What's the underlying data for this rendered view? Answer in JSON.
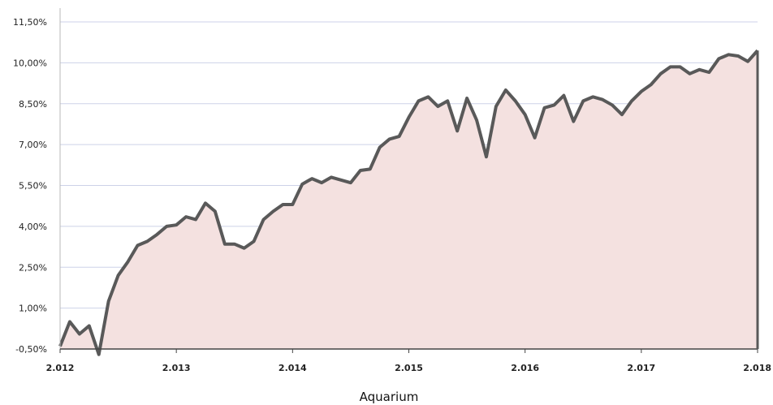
{
  "chart_data": {
    "type": "area",
    "title": "",
    "xlabel": "Aquarium",
    "ylabel": "",
    "ylim": [
      -0.5,
      12.0
    ],
    "xlim": [
      2012,
      2018
    ],
    "y_ticks": [
      "-0,50%",
      "1,00%",
      "2,50%",
      "4,00%",
      "5,50%",
      "7,00%",
      "8,50%",
      "10,00%",
      "11,50%"
    ],
    "y_tick_values": [
      -0.5,
      1.0,
      2.5,
      4.0,
      5.5,
      7.0,
      8.5,
      10.0,
      11.5
    ],
    "x_ticks": [
      "2.012",
      "2.013",
      "2.014",
      "2.015",
      "2.016",
      "2.017",
      "2.018"
    ],
    "x_tick_values": [
      2012,
      2013,
      2014,
      2015,
      2016,
      2017,
      2018
    ],
    "grid": "horizontal",
    "line_color": "#595959",
    "fill_color": "#f4e1e0",
    "grid_color": "#cdd2e8",
    "series": [
      {
        "x": [
          2012.0,
          2012.0833,
          2012.1667,
          2012.25,
          2012.3333,
          2012.4167,
          2012.5,
          2012.5833,
          2012.6667,
          2012.75,
          2012.8333,
          2012.9167,
          2013.0,
          2013.0833,
          2013.1667,
          2013.25,
          2013.3333,
          2013.4167,
          2013.5,
          2013.5833,
          2013.6667,
          2013.75,
          2013.8333,
          2013.9167,
          2014.0,
          2014.0833,
          2014.1667,
          2014.25,
          2014.3333,
          2014.4167,
          2014.5,
          2014.5833,
          2014.6667,
          2014.75,
          2014.8333,
          2014.9167,
          2015.0,
          2015.0833,
          2015.1667,
          2015.25,
          2015.3333,
          2015.4167,
          2015.5,
          2015.5833,
          2015.6667,
          2015.75,
          2015.8333,
          2015.9167,
          2016.0,
          2016.0833,
          2016.1667,
          2016.25,
          2016.3333,
          2016.4167,
          2016.5,
          2016.5833,
          2016.6667,
          2016.75,
          2016.8333,
          2016.9167,
          2017.0,
          2017.0833,
          2017.1667,
          2017.25,
          2017.3333,
          2017.4167,
          2017.5,
          2017.5833,
          2017.6667,
          2017.75,
          2017.8333,
          2017.9167,
          2018.0
        ],
        "values": [
          -0.4,
          0.5,
          0.05,
          0.35,
          -0.7,
          1.25,
          2.2,
          2.7,
          3.3,
          3.45,
          3.7,
          4.0,
          4.05,
          4.35,
          4.25,
          4.85,
          4.55,
          3.35,
          3.35,
          3.2,
          3.45,
          4.25,
          4.55,
          4.8,
          4.8,
          5.55,
          5.75,
          5.6,
          5.8,
          5.7,
          5.6,
          6.05,
          6.1,
          6.9,
          7.2,
          7.3,
          8.0,
          8.6,
          8.75,
          8.4,
          8.6,
          7.5,
          8.7,
          7.9,
          6.55,
          8.4,
          9.0,
          8.6,
          8.1,
          7.25,
          8.35,
          8.45,
          8.8,
          7.85,
          8.6,
          8.75,
          8.65,
          8.45,
          8.1,
          8.6,
          8.95,
          9.2,
          9.6,
          9.85,
          9.85,
          9.6,
          9.75,
          9.65,
          10.15,
          10.3,
          10.25,
          10.05,
          10.45
        ]
      }
    ]
  }
}
